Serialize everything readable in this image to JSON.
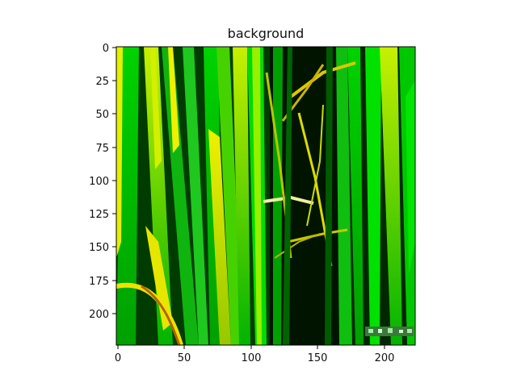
{
  "figure": {
    "title": "background"
  },
  "image_axes": {
    "x_ticks": [
      "0",
      "50",
      "100",
      "150",
      "200"
    ],
    "y_ticks": [
      "0",
      "25",
      "50",
      "75",
      "100",
      "125",
      "150",
      "175",
      "200"
    ],
    "x_range": [
      0,
      224
    ],
    "y_range": [
      0,
      224
    ]
  },
  "image_content": {
    "subject": "close-up of green rice plant leaves with yellow stems and dark background",
    "dominant_colors": [
      "#00c800",
      "#c8e600",
      "#000000",
      "#f0f000"
    ]
  }
}
